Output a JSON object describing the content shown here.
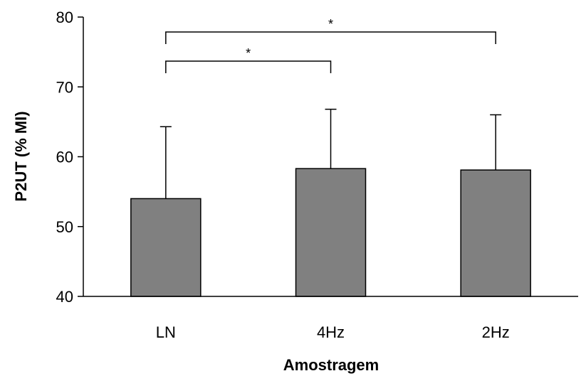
{
  "chart_data": {
    "type": "bar",
    "title": "",
    "xlabel": "Amostragem",
    "ylabel": "P2UT (% MI)",
    "categories": [
      "LN",
      "4Hz",
      "2Hz"
    ],
    "values": [
      54.0,
      58.3,
      58.1
    ],
    "error_plus": [
      10.3,
      8.5,
      7.9
    ],
    "ylim": [
      40,
      80
    ],
    "yticks": [
      "40",
      "50",
      "60",
      "70",
      "80"
    ],
    "bar_color": "#808080",
    "grid": false,
    "legend": "none",
    "significance": [
      {
        "from": "LN",
        "to": "4Hz",
        "label": "*"
      },
      {
        "from": "LN",
        "to": "2Hz",
        "label": "*"
      }
    ]
  }
}
